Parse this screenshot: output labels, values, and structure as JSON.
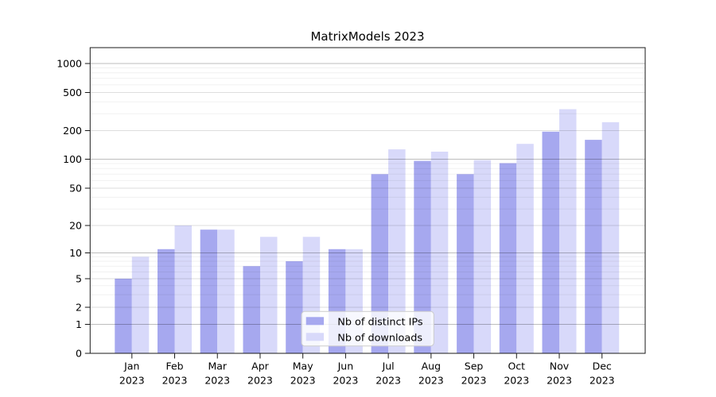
{
  "title": "MatrixModels 2023",
  "chart_data": {
    "type": "bar",
    "title": "MatrixModels 2023",
    "categories": [
      "Jan 2023",
      "Feb 2023",
      "Mar 2023",
      "Apr 2023",
      "May 2023",
      "Jun 2023",
      "Jul 2023",
      "Aug 2023",
      "Sep 2023",
      "Oct 2023",
      "Nov 2023",
      "Dec 2023"
    ],
    "x_tick_months": [
      "Jan",
      "Feb",
      "Mar",
      "Apr",
      "May",
      "Jun",
      "Jul",
      "Aug",
      "Sep",
      "Oct",
      "Nov",
      "Dec"
    ],
    "x_tick_year": "2023",
    "series": [
      {
        "name": "Nb of distinct IPs",
        "color": "#a6a8ef",
        "values": [
          5,
          11,
          18,
          7,
          8,
          11,
          70,
          96,
          70,
          91,
          195,
          160
        ]
      },
      {
        "name": "Nb of downloads",
        "color": "#d8d9fa",
        "values": [
          9,
          20,
          18,
          15,
          15,
          11,
          127,
          120,
          98,
          145,
          335,
          245
        ]
      }
    ],
    "yscale": "symlog",
    "yticks": [
      0,
      1,
      2,
      5,
      10,
      20,
      50,
      100,
      200,
      500,
      1000
    ],
    "ylim": [
      0,
      1400
    ],
    "grid": "on",
    "legend": {
      "labels": [
        "Nb of distinct IPs",
        "Nb of downloads"
      ],
      "position": "lower center"
    }
  },
  "style": {
    "bar_dark": "#a6a8ef",
    "bar_light": "#d8d9fa",
    "grid_decade": "rgba(0,0,0,0.26)",
    "grid_submajor": "rgba(0,0,0,0.13)",
    "grid_minor": "rgba(0,0,0,0.06)",
    "spine_color": "#1a1a1a",
    "tick_color": "#1a1a1a",
    "legend_border": "#cccccc",
    "legend_bg": "rgba(255,255,255,0.8)"
  }
}
